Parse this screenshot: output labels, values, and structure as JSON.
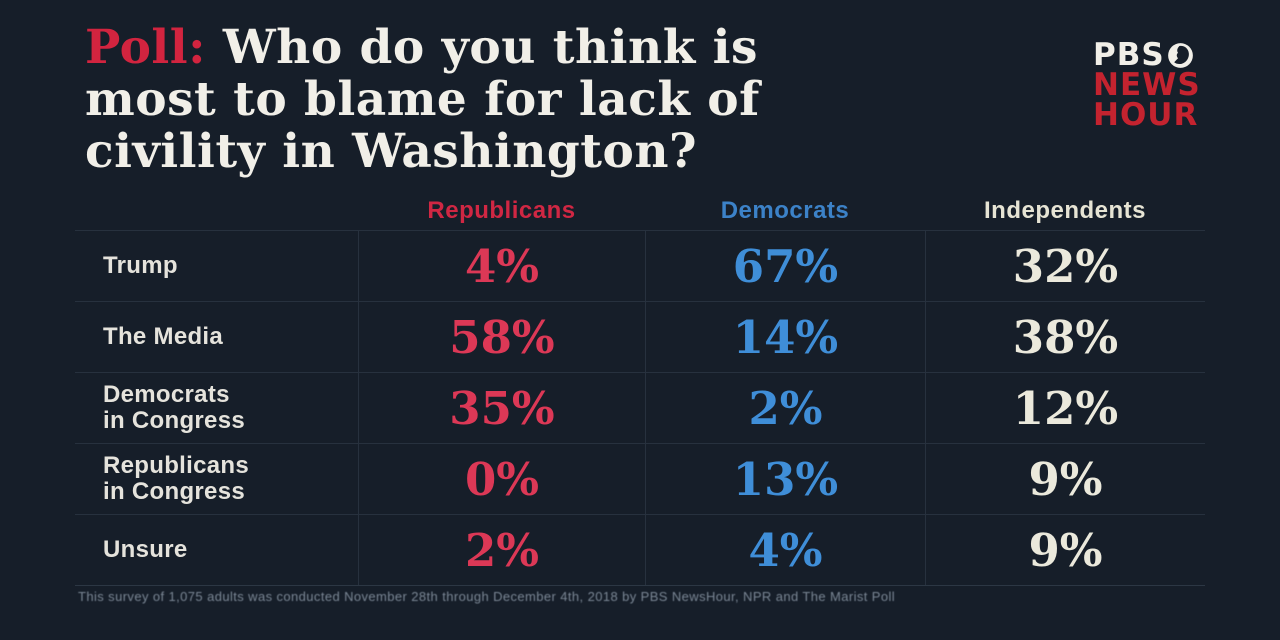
{
  "page": {
    "background": "#161e29"
  },
  "title": {
    "prefix": "Poll:",
    "line1_rest": " Who do you think is",
    "line2": "most to blame for lack of",
    "line3": "civility in Washington?",
    "prefix_color": "#d2243f",
    "text_color": "#f1efe8"
  },
  "logo": {
    "pbs": "PBS",
    "news": "NEWS",
    "hour": "HOUR",
    "red": "#c4232f",
    "white": "#f1efe8"
  },
  "table": {
    "columns": [
      {
        "label": "Republicans",
        "label_color": "#d02743",
        "value_color": "#dc3856"
      },
      {
        "label": "Democrats",
        "label_color": "#3c82c8",
        "value_color": "#3f8ed8"
      },
      {
        "label": "Independents",
        "label_color": "#e6e4d4",
        "value_color": "#ebe9dc"
      }
    ],
    "rows": [
      {
        "label": "Trump",
        "values": [
          "4%",
          "67%",
          "32%"
        ]
      },
      {
        "label": "The Media",
        "values": [
          "58%",
          "14%",
          "38%"
        ]
      },
      {
        "label": "Democrats\nin Congress",
        "values": [
          "35%",
          "2%",
          "12%"
        ]
      },
      {
        "label": "Republicans\nin Congress",
        "values": [
          "0%",
          "13%",
          "9%"
        ]
      },
      {
        "label": "Unsure",
        "values": [
          "2%",
          "4%",
          "9%"
        ]
      }
    ]
  },
  "footnote": "This survey of 1,075 adults was conducted November 28th through December 4th, 2018 by PBS NewsHour, NPR and The Marist Poll",
  "chart_data": {
    "type": "table",
    "title": "Poll: Who do you think is most to blame for lack of civility in Washington?",
    "categories": [
      "Trump",
      "The Media",
      "Democrats in Congress",
      "Republicans in Congress",
      "Unsure"
    ],
    "series": [
      {
        "name": "Republicans",
        "values": [
          4,
          58,
          35,
          0,
          2
        ]
      },
      {
        "name": "Democrats",
        "values": [
          67,
          14,
          2,
          13,
          4
        ]
      },
      {
        "name": "Independents",
        "values": [
          32,
          38,
          12,
          9,
          9
        ]
      }
    ],
    "unit": "%",
    "source": "PBS NewsHour / NPR / Marist Poll"
  }
}
